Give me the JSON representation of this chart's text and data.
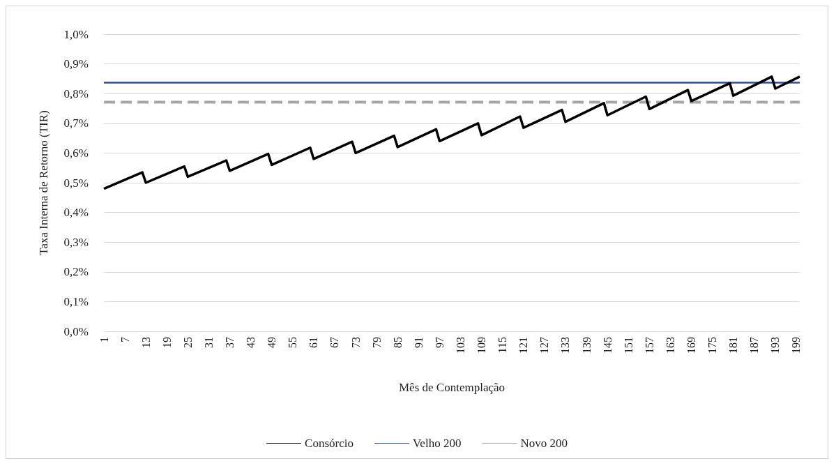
{
  "chart_data": {
    "type": "line",
    "xlabel": "Mês de Contemplação",
    "ylabel": "Taxa Interna de Retorno (TIR)",
    "xlim": [
      1,
      200
    ],
    "xticks": [
      1,
      7,
      13,
      19,
      25,
      31,
      37,
      43,
      49,
      55,
      61,
      67,
      73,
      79,
      85,
      91,
      97,
      103,
      109,
      115,
      121,
      127,
      133,
      139,
      145,
      151,
      157,
      163,
      169,
      175,
      181,
      187,
      193,
      199
    ],
    "ylim": [
      0,
      1
    ],
    "yticks": [
      {
        "value": 0,
        "label": "0,0%"
      },
      {
        "value": 0.1,
        "label": "0,1%"
      },
      {
        "value": 0.2,
        "label": "0,2%"
      },
      {
        "value": 0.3,
        "label": "0,3%"
      },
      {
        "value": 0.4,
        "label": "0,4%"
      },
      {
        "value": 0.5,
        "label": "0,5%"
      },
      {
        "value": 0.6,
        "label": "0,6%"
      },
      {
        "value": 0.7,
        "label": "0,7%"
      },
      {
        "value": 0.8,
        "label": "0,8%"
      },
      {
        "value": 0.9,
        "label": "0,9%"
      },
      {
        "value": 1,
        "label": "1,0%"
      }
    ],
    "grid": "y",
    "legend": "bottom",
    "marker": "none",
    "series": [
      {
        "name": "Consórcio",
        "color": "#000000",
        "line_style": "solid",
        "x": [
          1,
          12,
          13,
          24,
          25,
          36,
          37,
          48,
          49,
          60,
          61,
          72,
          73,
          84,
          85,
          96,
          97,
          108,
          109,
          120,
          121,
          132,
          133,
          144,
          145,
          156,
          157,
          168,
          169,
          180,
          181,
          192,
          193,
          200
        ],
        "values": [
          0.48,
          0.535,
          0.5,
          0.555,
          0.52,
          0.575,
          0.54,
          0.597,
          0.56,
          0.618,
          0.58,
          0.638,
          0.6,
          0.658,
          0.62,
          0.68,
          0.64,
          0.7,
          0.66,
          0.723,
          0.685,
          0.745,
          0.705,
          0.768,
          0.727,
          0.79,
          0.748,
          0.812,
          0.775,
          0.835,
          0.793,
          0.857,
          0.817,
          0.857
        ]
      },
      {
        "name": "Velho 200",
        "color": "#2f4b8f",
        "line_style": "solid",
        "x": [
          1,
          200
        ],
        "values": [
          0.837,
          0.837
        ]
      },
      {
        "name": "Novo 200",
        "color": "#a6a6a6",
        "line_style": "dashed",
        "x": [
          1,
          200
        ],
        "values": [
          0.771,
          0.771
        ]
      }
    ]
  }
}
